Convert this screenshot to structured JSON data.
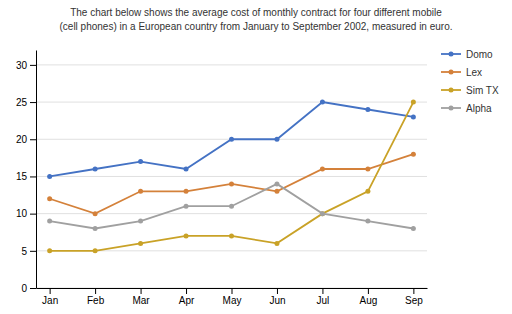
{
  "chart_data": {
    "type": "line",
    "title": "The chart below shows the average cost of monthly contract for four different mobile",
    "subtitle": "(cell phones) in a European country from January to September 2002, measured in euro.",
    "categories": [
      "Jan",
      "Feb",
      "Mar",
      "Apr",
      "May",
      "Jun",
      "Jul",
      "Aug",
      "Sep"
    ],
    "series": [
      {
        "name": "Domo",
        "color": "#4472C4",
        "marker": "circle",
        "values": [
          15,
          16,
          17,
          16,
          20,
          20,
          25,
          24,
          23
        ]
      },
      {
        "name": "Lex",
        "color": "#D4813A",
        "marker": "circle",
        "values": [
          12,
          10,
          13,
          13,
          14,
          13,
          16,
          16,
          18
        ]
      },
      {
        "name": "Sim TX",
        "color": "#C9A227",
        "marker": "circle",
        "values": [
          5,
          5,
          6,
          7,
          7,
          6,
          10,
          13,
          25
        ]
      },
      {
        "name": "Alpha",
        "color": "#A0A0A0",
        "marker": "circle",
        "values": [
          9,
          8,
          9,
          11,
          11,
          14,
          10,
          9,
          8
        ]
      }
    ],
    "ylim": [
      0,
      32
    ],
    "yticks": [
      0,
      5,
      10,
      15,
      20,
      25,
      30
    ],
    "grid": true,
    "legend": "right"
  }
}
